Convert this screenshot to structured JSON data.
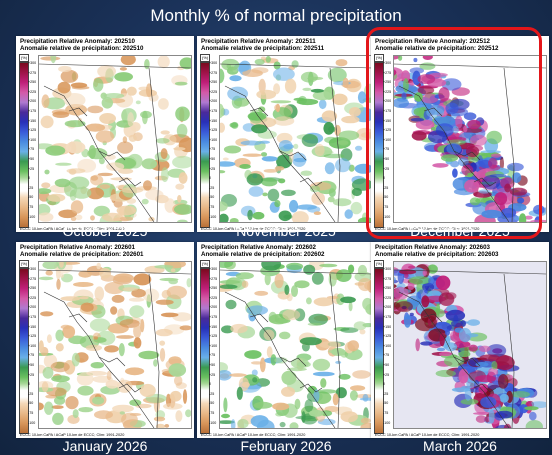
{
  "title": "Monthly % of normal precipitation",
  "legend": {
    "unit": "(%)",
    "ticks": [
      "+300",
      "+275",
      "+250",
      "+225",
      "+200",
      "+175",
      "+150",
      "+125",
      "+100",
      "+75",
      "+50",
      "+25",
      "0",
      "-25",
      "-50",
      "-75",
      "-100"
    ]
  },
  "panels": [
    {
      "header_en": "Precipitation Relative Anomaly: 202510",
      "header_fr": "Anomalie relative de précipitation: 202510",
      "footer": "ECCC 10-km CaPA / ACaP 10-km de ECCC; Clim: 1991-2020",
      "month": "October 2025"
    },
    {
      "header_en": "Precipitation Relative Anomaly: 202511",
      "header_fr": "Anomalie relative de précipitation: 202511",
      "footer": "ECCC 10-km CaPA / ACaP 10-km de ECCC; Clim: 1991-2020",
      "month": "November 2025"
    },
    {
      "header_en": "Precipitation Relative Anomaly: 202512",
      "header_fr": "Anomalie relative de précipitation: 202512",
      "footer": "ECCC 10-km CaPA / ACaP 10-km de ECCC; Clim: 1991-2020",
      "month": "December 2025"
    },
    {
      "header_en": "Precipitation Relative Anomaly: 202601",
      "header_fr": "Anomalie relative de précipitation: 202601",
      "footer": "ECCC 10-km CaPA / ACaP 10-km de ECCC; Clim: 1991-2020",
      "month": "January 2026"
    },
    {
      "header_en": "Precipitation Relative Anomaly: 202602",
      "header_fr": "Anomalie relative de précipitation: 202602",
      "footer": "ECCC 10-km CaPA / ACaP 10-km de ECCC; Clim: 1991-2020",
      "month": "February 2026"
    },
    {
      "header_en": "Precipitation Relative Anomaly: 202603",
      "header_fr": "Anomalie relative de précipitation: 202603",
      "footer": "ECCC 10-km CaPA / ACaP 10-km de ECCC; Clim: 1991-2020",
      "month": "March 2026"
    }
  ],
  "highlighted_panel": "December 2025",
  "colors": {
    "highlight_border": "#e3161a",
    "dry": "#e8b888",
    "wet_green": "#6ac060",
    "wet_blue": "#3a5ad8",
    "wet_purple": "#c0207a",
    "wet_darkred": "#7a0a1e"
  }
}
